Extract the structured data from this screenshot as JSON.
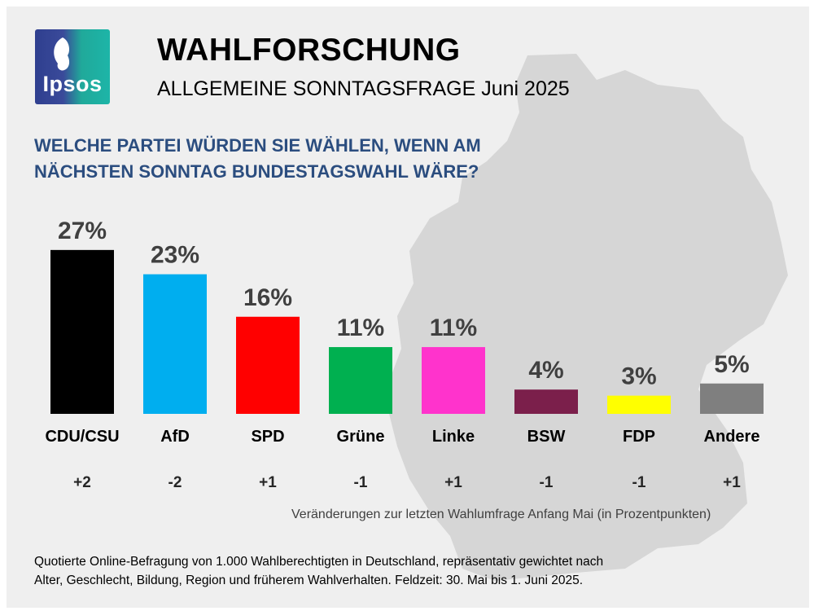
{
  "header": {
    "logo_text": "Ipsos",
    "title": "WAHLFORSCHUNG",
    "subtitle": "ALLGEMEINE SONNTAGSFRAGE Juni 2025"
  },
  "question": "WELCHE PARTEI WÜRDEN SIE WÄHLEN, WENN AM NÄCHSTEN SONNTAG BUNDESTAGSWAHL WÄRE?",
  "chart_data": {
    "type": "bar",
    "categories": [
      "CDU/CSU",
      "AfD",
      "SPD",
      "Grüne",
      "Linke",
      "BSW",
      "FDP",
      "Andere"
    ],
    "values": [
      27,
      23,
      16,
      11,
      11,
      4,
      3,
      5
    ],
    "value_labels": [
      "27%",
      "23%",
      "16%",
      "11%",
      "11%",
      "4%",
      "3%",
      "5%"
    ],
    "changes": [
      "+2",
      "-2",
      "+1",
      "-1",
      "+1",
      "-1",
      "-1",
      "+1"
    ],
    "colors": [
      "#000000",
      "#00aeef",
      "#ff0000",
      "#00b050",
      "#ff33cc",
      "#7b1f4b",
      "#ffff00",
      "#7f7f7f"
    ],
    "ylim": [
      0,
      30
    ],
    "grid": false,
    "legend": "none"
  },
  "change_note": "Veränderungen zur letzten Wahlumfrage Anfang Mai (in Prozentpunkten)",
  "footnote": {
    "line1": "Quotierte Online-Befragung von 1.000 Wahlberechtigten in Deutschland, repräsentativ gewichtet nach",
    "line2": "Alter, Geschlecht, Bildung, Region und früherem Wahlverhalten. Feldzeit: 30. Mai bis 1. Juni 2025."
  },
  "colors": {
    "background": "#efefef",
    "map": "#d7d7d7",
    "question": "#2b4d7f"
  }
}
